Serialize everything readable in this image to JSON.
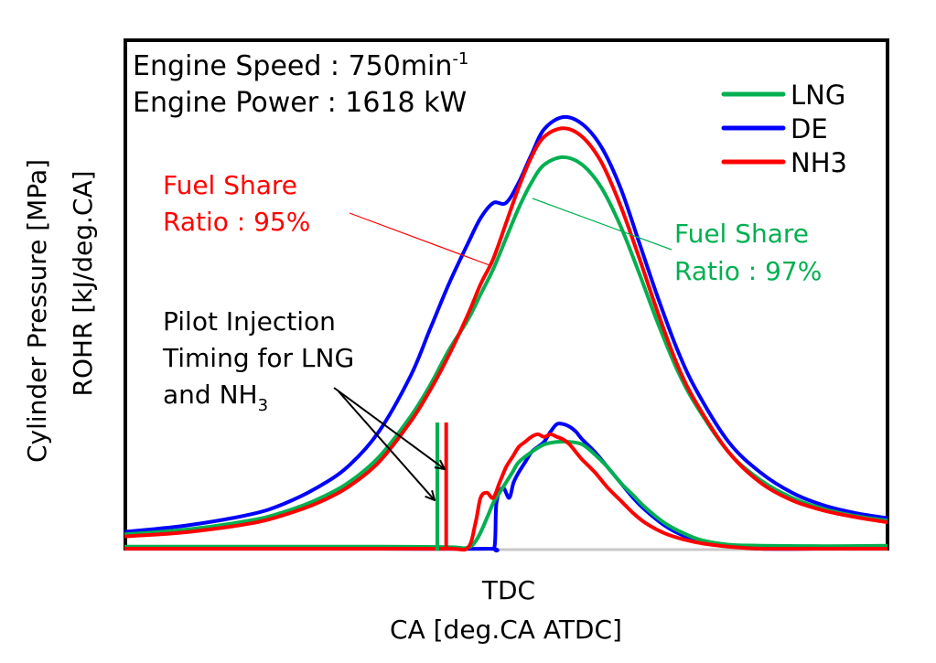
{
  "chart_data": {
    "type": "line",
    "title": "",
    "xlabel_line1": "TDC",
    "xlabel_line2": "CA [deg.CA ATDC]",
    "ylabel_line1": "Cylinder Pressure [MPa]",
    "ylabel_line2": "ROHR [kJ/deg.CA]",
    "xlim": [
      -60,
      60
    ],
    "ylim": [
      0,
      1
    ],
    "grid": false,
    "legend": {
      "placement": "top-right",
      "entries": [
        {
          "name": "LNG",
          "color": "#00b050"
        },
        {
          "name": "DE",
          "color": "#0000ff"
        },
        {
          "name": "NH3",
          "color": "#ff0000"
        }
      ]
    },
    "annotations": {
      "engine_speed": "Engine Speed : 750min",
      "engine_speed_sup": "-1",
      "engine_power": "Engine Power : 1618 kW",
      "nh3_share_line1": "Fuel Share",
      "nh3_share_line2": "Ratio : 95%",
      "lng_share_line1": "Fuel Share",
      "lng_share_line2": "Ratio : 97%",
      "pilot_line1": "Pilot Injection",
      "pilot_line2": "Timing for LNG",
      "pilot_line3_main": "and NH",
      "pilot_line3_sub": "3"
    },
    "pilot_injection": [
      {
        "series": "LNG",
        "ca": -10.8,
        "color": "#00b050"
      },
      {
        "series": "NH3",
        "ca": -9.4,
        "color": "#ff0000"
      }
    ],
    "pressure_series": [
      {
        "name": "DE",
        "color": "#0000ff",
        "x": [
          -60,
          -50,
          -40,
          -35,
          -30,
          -25,
          -20,
          -15,
          -12,
          -9,
          -6,
          -4,
          -2,
          0,
          2,
          4,
          6,
          9,
          12,
          15,
          18,
          21,
          24,
          27,
          30,
          35,
          40,
          45,
          50,
          55,
          60
        ],
        "y": [
          0.033,
          0.046,
          0.068,
          0.088,
          0.118,
          0.16,
          0.23,
          0.34,
          0.43,
          0.52,
          0.6,
          0.65,
          0.68,
          0.68,
          0.72,
          0.775,
          0.825,
          0.849,
          0.835,
          0.79,
          0.71,
          0.6,
          0.49,
          0.39,
          0.31,
          0.21,
          0.15,
          0.11,
          0.085,
          0.07,
          0.06
        ]
      },
      {
        "name": "LNG",
        "color": "#00b050",
        "x": [
          -60,
          -50,
          -40,
          -35,
          -30,
          -25,
          -20,
          -15,
          -12,
          -9,
          -6,
          -4,
          -2,
          0,
          2,
          4,
          6,
          9,
          12,
          15,
          18,
          21,
          24,
          27,
          30,
          35,
          40,
          45,
          50,
          55,
          60
        ],
        "y": [
          0.028,
          0.038,
          0.056,
          0.072,
          0.095,
          0.128,
          0.18,
          0.26,
          0.32,
          0.39,
          0.45,
          0.5,
          0.55,
          0.61,
          0.67,
          0.72,
          0.755,
          0.77,
          0.755,
          0.71,
          0.635,
          0.54,
          0.44,
          0.35,
          0.28,
          0.19,
          0.135,
          0.1,
          0.078,
          0.064,
          0.055
        ]
      },
      {
        "name": "NH3",
        "color": "#ff0000",
        "x": [
          -60,
          -50,
          -40,
          -35,
          -30,
          -25,
          -20,
          -15,
          -12,
          -9,
          -6,
          -4,
          -2,
          0,
          2,
          4,
          6,
          9,
          12,
          15,
          18,
          21,
          24,
          27,
          30,
          35,
          40,
          45,
          50,
          55,
          60
        ],
        "y": [
          0.024,
          0.033,
          0.05,
          0.066,
          0.088,
          0.12,
          0.17,
          0.25,
          0.31,
          0.38,
          0.46,
          0.52,
          0.57,
          0.64,
          0.71,
          0.77,
          0.81,
          0.827,
          0.81,
          0.76,
          0.675,
          0.57,
          0.46,
          0.36,
          0.285,
          0.19,
          0.13,
          0.095,
          0.075,
          0.062,
          0.052
        ]
      }
    ],
    "rohr_series": [
      {
        "name": "DE",
        "color": "#0000ff",
        "x": [
          -60,
          -20,
          -3,
          -1.8,
          -1.5,
          -0.5,
          0.5,
          1.2,
          2,
          3,
          4,
          5,
          6,
          7,
          8,
          9,
          10,
          11,
          12,
          14,
          16,
          18,
          20,
          22,
          25,
          28,
          31,
          35,
          40,
          50,
          60
        ],
        "y": [
          0.0,
          0.0,
          0.0,
          0.004,
          0.09,
          0.12,
          0.1,
          0.13,
          0.15,
          0.17,
          0.19,
          0.2,
          0.21,
          0.23,
          0.245,
          0.245,
          0.24,
          0.23,
          0.215,
          0.19,
          0.16,
          0.13,
          0.1,
          0.075,
          0.045,
          0.025,
          0.012,
          0.005,
          0.0,
          0.0,
          0.0
        ]
      },
      {
        "name": "LNG",
        "color": "#00b050",
        "x": [
          -60,
          -20,
          -9,
          -6,
          -4.5,
          -3,
          -2,
          -1,
          0,
          1,
          2,
          4,
          6,
          8,
          10,
          12,
          14,
          16,
          18,
          20,
          22,
          25,
          28,
          31,
          35,
          40,
          50,
          60
        ],
        "y": [
          0.004,
          0.004,
          0.003,
          0.002,
          0.02,
          0.06,
          0.09,
          0.11,
          0.13,
          0.15,
          0.17,
          0.19,
          0.205,
          0.21,
          0.21,
          0.205,
          0.185,
          0.16,
          0.13,
          0.105,
          0.08,
          0.05,
          0.03,
          0.016,
          0.008,
          0.006,
          0.005,
          0.006
        ]
      },
      {
        "name": "NH3",
        "color": "#ff0000",
        "x": [
          -60,
          -20,
          -9,
          -6,
          -4.8,
          -4,
          -3,
          -2,
          -1,
          0,
          1,
          2,
          3,
          4,
          5,
          6,
          7,
          8,
          9,
          10,
          11,
          12,
          14,
          16,
          18,
          20,
          22,
          25,
          28,
          31,
          35,
          40,
          50,
          60
        ],
        "y": [
          0.0,
          0.0,
          0.0,
          0.002,
          0.05,
          0.1,
          0.11,
          0.1,
          0.13,
          0.16,
          0.18,
          0.2,
          0.21,
          0.22,
          0.225,
          0.22,
          0.225,
          0.22,
          0.215,
          0.205,
          0.19,
          0.175,
          0.15,
          0.12,
          0.095,
          0.07,
          0.05,
          0.03,
          0.018,
          0.01,
          0.004,
          0.0,
          0.0,
          0.0
        ]
      }
    ]
  }
}
